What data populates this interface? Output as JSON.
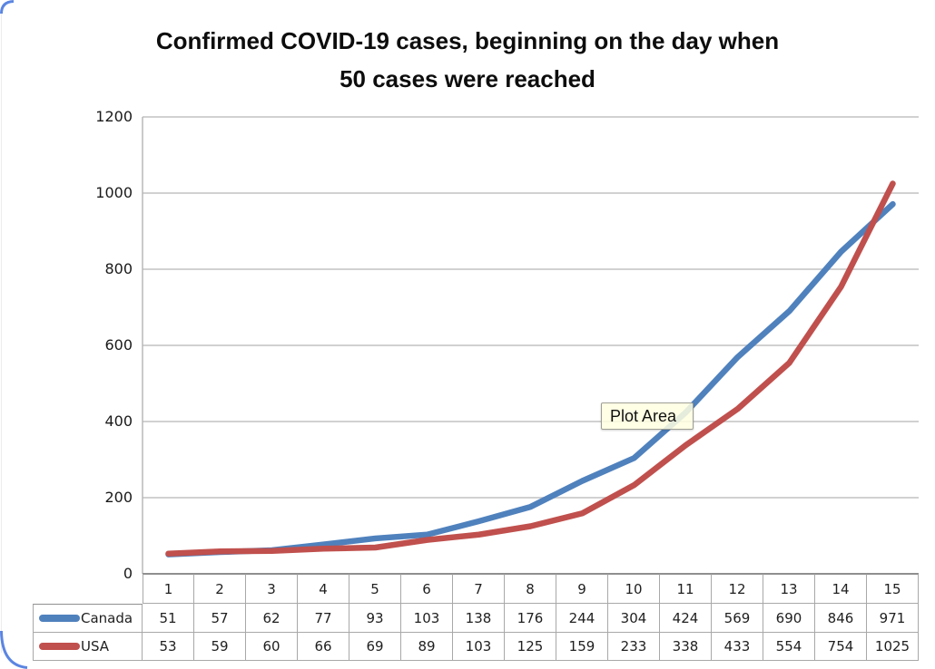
{
  "title": {
    "line1": "Confirmed COVID-19 cases, beginning on the day when",
    "line2": "50 cases were reached"
  },
  "tooltip": {
    "label": "Plot Area"
  },
  "chart_data": {
    "type": "line",
    "title": "Confirmed COVID-19 cases, beginning on the day when 50 cases were reached",
    "categories": [
      1,
      2,
      3,
      4,
      5,
      6,
      7,
      8,
      9,
      10,
      11,
      12,
      13,
      14,
      15
    ],
    "series": [
      {
        "name": "Canada",
        "color": "#4f81bd",
        "values": [
          51,
          57,
          62,
          77,
          93,
          103,
          138,
          176,
          244,
          304,
          424,
          569,
          690,
          846,
          971
        ]
      },
      {
        "name": "USA",
        "color": "#c0504d",
        "values": [
          53,
          59,
          60,
          66,
          69,
          89,
          103,
          125,
          159,
          233,
          338,
          433,
          554,
          754,
          1025
        ]
      }
    ],
    "xlabel": "",
    "ylabel": "",
    "ylim": [
      0,
      1200
    ],
    "y_ticks": [
      0,
      200,
      400,
      600,
      800,
      1000,
      1200
    ],
    "grid": true,
    "legend_position": "table-left"
  },
  "colors": {
    "gridline": "#d1d1d1",
    "x_axis": "#8f8f8f",
    "y_axis": "#b8b8b8",
    "table_border": "#a8a8a8",
    "tooltip_bg": "#ffffe1",
    "frame_accent": "#5b85e2"
  }
}
